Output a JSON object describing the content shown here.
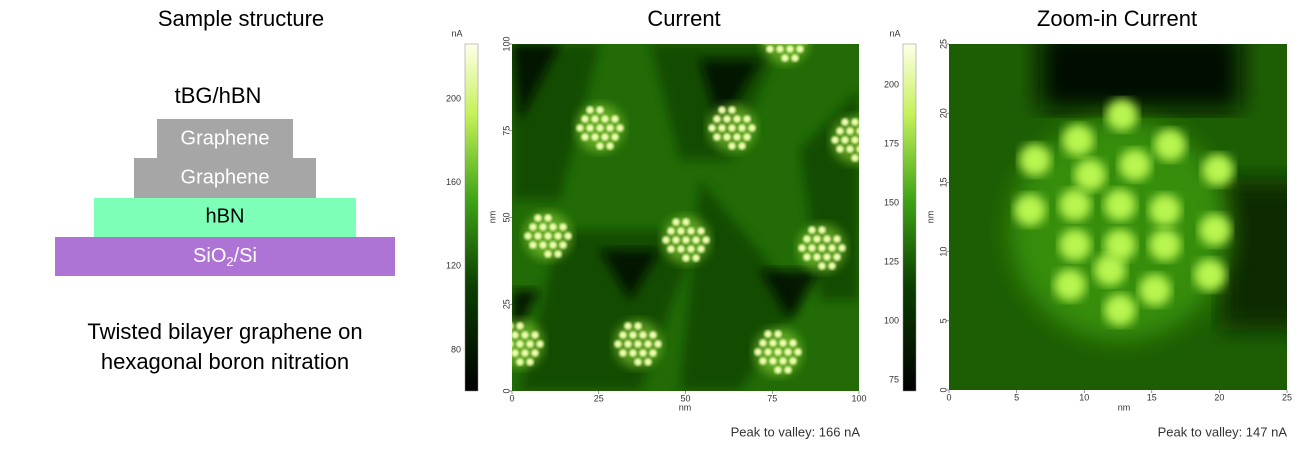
{
  "left": {
    "title": "Sample structure",
    "stack_label": "tBG/hBN",
    "layers": [
      {
        "text": "Graphene"
      },
      {
        "text": "Graphene"
      },
      {
        "text": "hBN"
      },
      {
        "text": "SiO",
        "sub": "2",
        "rest": "/Si"
      }
    ],
    "caption": [
      "Twisted bilayer graphene on",
      "hexagonal boron nitration"
    ]
  },
  "current": {
    "title": "Current",
    "colorbar_unit": "nA",
    "colorbar_ticks": [
      80,
      120,
      160,
      200
    ],
    "x_label": "nm",
    "y_label": "nm",
    "xticks": [
      0,
      25,
      50,
      75,
      100
    ],
    "yticks": [
      0,
      25,
      50,
      75,
      100
    ],
    "note": "Peak to valley: 166 nA"
  },
  "zoom": {
    "title": "Zoom-in Current",
    "colorbar_unit": "nA",
    "colorbar_ticks": [
      75,
      100,
      125,
      150,
      175,
      200
    ],
    "x_label": "nm",
    "y_label": "nm",
    "xticks": [
      0,
      5,
      10,
      15,
      20,
      25
    ],
    "yticks": [
      0,
      5,
      10,
      15,
      20,
      25
    ],
    "note": "Peak to valley: 147 nA"
  }
}
